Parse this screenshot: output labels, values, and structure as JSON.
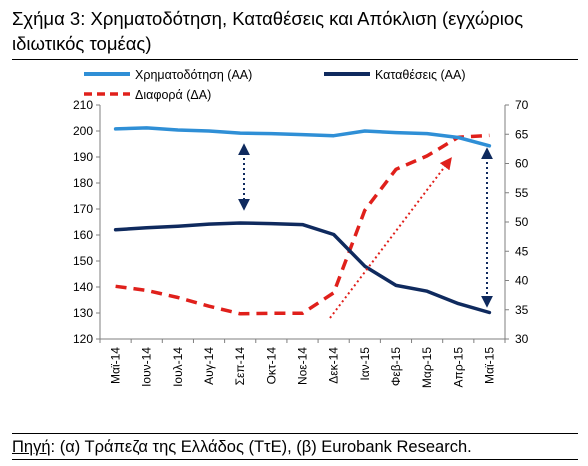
{
  "figure": {
    "title_line1": "Σχήμα 3: Χρηματοδότηση, Καταθέσεις και Απόκλιση (εγχώριος",
    "title_line2": "ιδιωτικός τομέας)",
    "source_label": "Πηγή",
    "source_text": ": (α) Τράπεζα της Ελλάδος (ΤτΕ), (β) Eurobank Research."
  },
  "chart_data": {
    "type": "line",
    "categories": [
      "Μαϊ-14",
      "Ιουν-14",
      "Ιουλ-14",
      "Αυγ-14",
      "Σεπ-14",
      "Οκτ-14",
      "Νοε-14",
      "Δεκ-14",
      "Ιαν-15",
      "Φεβ-15",
      "Μαρ-15",
      "Απρ-15",
      "Μαϊ-15"
    ],
    "y_left": {
      "min": 120,
      "max": 210,
      "ticks": [
        120,
        130,
        140,
        150,
        160,
        170,
        180,
        190,
        200,
        210
      ]
    },
    "y_right": {
      "min": 30,
      "max": 70,
      "ticks": [
        30,
        35,
        40,
        45,
        50,
        55,
        60,
        65,
        70
      ]
    },
    "grid": false,
    "legend_position": "top",
    "series": [
      {
        "name": "Χρηματοδότηση (ΑΑ)",
        "axis": "left",
        "color": "#2f8fd6",
        "style": "solid",
        "values": [
          200.8,
          201.2,
          200.4,
          200.0,
          199.2,
          199.0,
          198.6,
          198.2,
          200.0,
          199.4,
          199.0,
          197.5,
          194.3
        ]
      },
      {
        "name": "Καταθέσεις (ΑΑ)",
        "axis": "left",
        "color": "#0f2a5e",
        "style": "solid",
        "values": [
          162.0,
          162.8,
          163.4,
          164.2,
          164.6,
          164.4,
          164.0,
          160.2,
          148.0,
          140.6,
          138.4,
          133.6,
          130.2
        ]
      },
      {
        "name": "Διαφορά (ΔΑ)",
        "axis": "right",
        "color": "#e0201b",
        "style": "dashed",
        "values": [
          39.0,
          38.3,
          37.1,
          35.6,
          34.3,
          34.4,
          34.4,
          37.9,
          52.0,
          59.0,
          61.3,
          64.5,
          64.8
        ]
      }
    ]
  }
}
